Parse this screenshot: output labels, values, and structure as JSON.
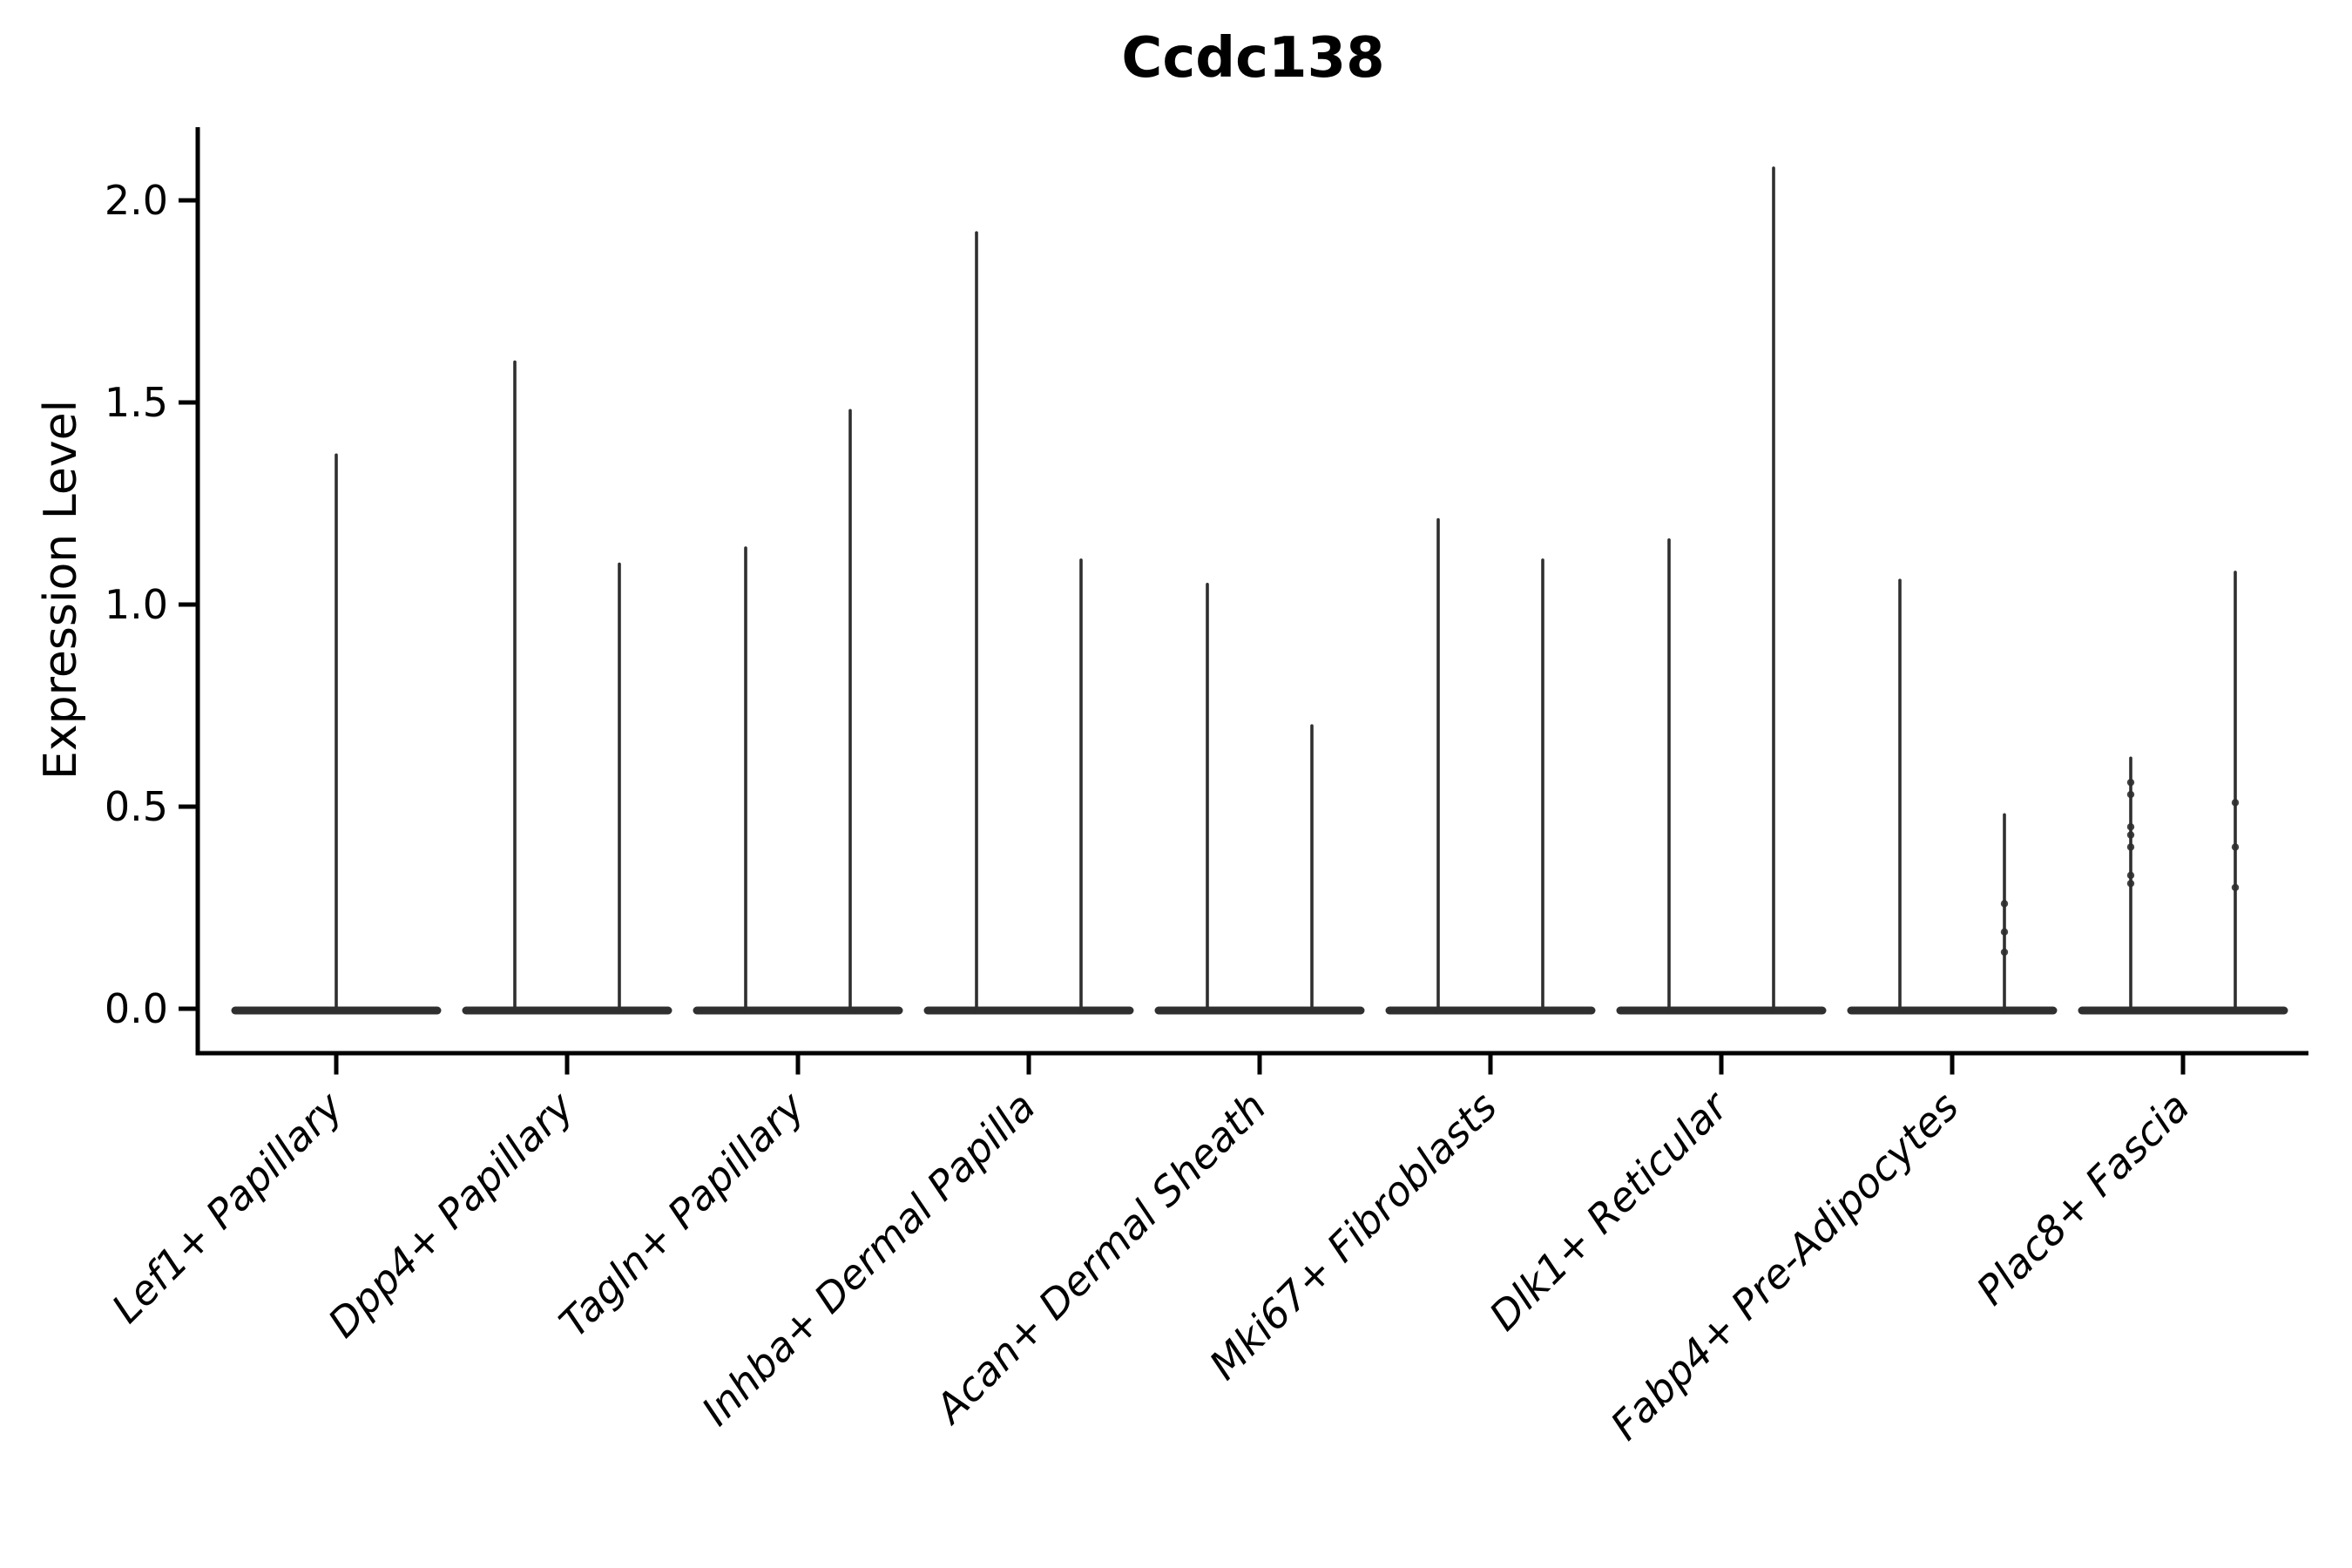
{
  "chart": {
    "title": "Ccdc138",
    "ylabel": "Expression Level"
  },
  "chart_data": {
    "type": "violin",
    "title": "Ccdc138",
    "xlabel": "",
    "ylabel": "Expression Level",
    "ylim": [
      -0.11,
      2.18
    ],
    "yticks": [
      0.0,
      0.5,
      1.0,
      1.5,
      2.0
    ],
    "grid": false,
    "legend": null,
    "description": "Single-cell expression violin plot; each cluster shows violins collapsed to a flat mass at 0 with thin density spikes up to the maximum expression value. Cluster 1 has a single centered violin; all other clusters have two side-by-side violins.",
    "categories": [
      "Lef1+ Papillary",
      "Dpp4+ Papillary",
      "Tagln+ Papillary",
      "Inhba+ Dermal Papilla",
      "Acan+ Dermal Sheath",
      "Mki67+ Fibroblasts",
      "Dlk1+ Reticular",
      "Fabp4+ Pre-Adipocytes",
      "Plac8+ Fascia"
    ],
    "series": [
      {
        "category": "Lef1+ Papillary",
        "violins": [
          {
            "max": 1.37,
            "points": []
          }
        ]
      },
      {
        "category": "Dpp4+ Papillary",
        "violins": [
          {
            "max": 1.6,
            "points": []
          },
          {
            "max": 1.1,
            "points": []
          }
        ]
      },
      {
        "category": "Tagln+ Papillary",
        "violins": [
          {
            "max": 1.14,
            "points": []
          },
          {
            "max": 1.48,
            "points": []
          }
        ]
      },
      {
        "category": "Inhba+ Dermal Papilla",
        "violins": [
          {
            "max": 1.92,
            "points": []
          },
          {
            "max": 1.11,
            "points": []
          }
        ]
      },
      {
        "category": "Acan+ Dermal Sheath",
        "violins": [
          {
            "max": 1.05,
            "points": []
          },
          {
            "max": 0.7,
            "points": []
          }
        ]
      },
      {
        "category": "Mki67+ Fibroblasts",
        "violins": [
          {
            "max": 1.21,
            "points": []
          },
          {
            "max": 1.11,
            "points": []
          }
        ]
      },
      {
        "category": "Dlk1+ Reticular",
        "violins": [
          {
            "max": 1.16,
            "points": []
          },
          {
            "max": 2.08,
            "points": []
          }
        ]
      },
      {
        "category": "Fabp4+ Pre-Adipocytes",
        "violins": [
          {
            "max": 1.06,
            "points": []
          },
          {
            "max": 0.48,
            "points": [
              0.26,
              0.19,
              0.14
            ]
          }
        ]
      },
      {
        "category": "Plac8+ Fascia",
        "violins": [
          {
            "max": 0.62,
            "points": [
              0.56,
              0.53,
              0.45,
              0.43,
              0.4,
              0.33,
              0.31
            ]
          },
          {
            "max": 1.08,
            "points": [
              0.51,
              0.4,
              0.3
            ]
          }
        ]
      }
    ],
    "colors": {
      "violin": "#2f2f2f",
      "spine": "#000000",
      "text": "#000000"
    }
  }
}
